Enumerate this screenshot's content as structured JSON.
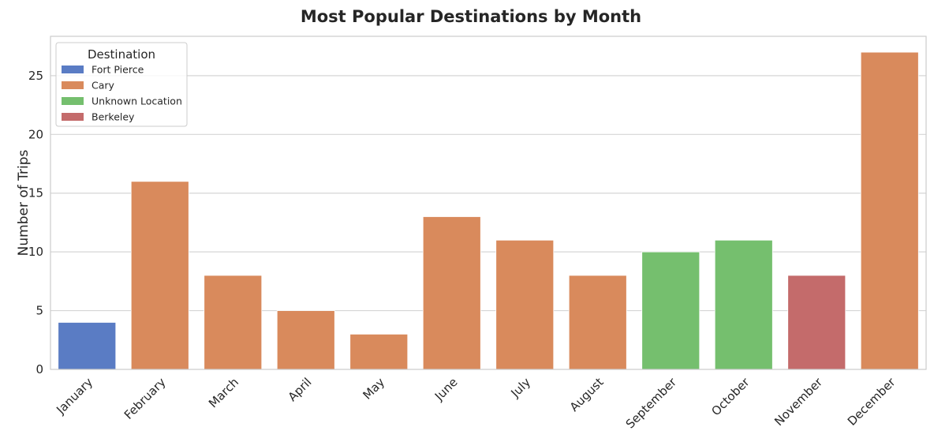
{
  "chart_data": {
    "type": "bar",
    "title": "Most Popular Destinations by Month",
    "xlabel": "",
    "ylabel": "Number of Trips",
    "ylim": [
      0,
      28.35
    ],
    "yticks": [
      0,
      5,
      10,
      15,
      20,
      25
    ],
    "grid": "horizontal",
    "legend_placement": "top-left",
    "legend_title": "Destination",
    "categories": [
      "January",
      "February",
      "March",
      "April",
      "May",
      "June",
      "July",
      "August",
      "September",
      "October",
      "November",
      "December"
    ],
    "values": [
      4,
      16,
      8,
      5,
      3,
      13,
      11,
      8,
      10,
      11,
      8,
      27
    ],
    "destinations": [
      "Fort Pierce",
      "Cary",
      "Cary",
      "Cary",
      "Cary",
      "Cary",
      "Cary",
      "Cary",
      "Unknown Location",
      "Unknown Location",
      "Berkeley",
      "Cary"
    ],
    "legend": [
      {
        "name": "Fort Pierce",
        "color": "#5a7cc4"
      },
      {
        "name": "Cary",
        "color": "#d98a5c"
      },
      {
        "name": "Unknown Location",
        "color": "#75bf6e"
      },
      {
        "name": "Berkeley",
        "color": "#c46b6b"
      }
    ]
  }
}
